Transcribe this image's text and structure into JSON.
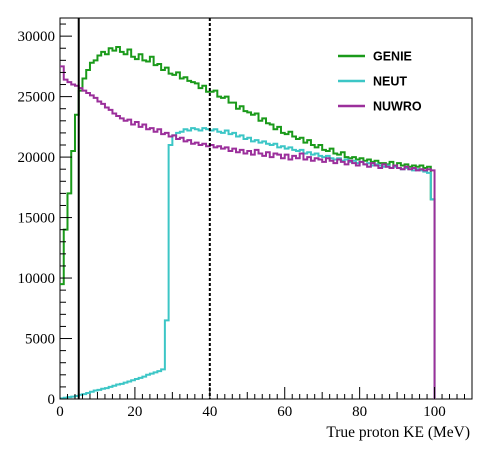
{
  "chart_data": {
    "type": "line",
    "title": "",
    "xlabel": "True proton KE (MeV)",
    "ylabel": "",
    "xlim": [
      0,
      110
    ],
    "ylim": [
      0,
      31500
    ],
    "x_ticks": [
      0,
      20,
      40,
      60,
      80,
      100
    ],
    "y_ticks": [
      0,
      5000,
      10000,
      15000,
      20000,
      25000,
      30000
    ],
    "x_tick_labels": [
      "0",
      "20",
      "40",
      "60",
      "80",
      "100"
    ],
    "y_tick_labels": [
      "0",
      "5000",
      "10000",
      "15000",
      "20000",
      "25000",
      "30000"
    ],
    "grid": false,
    "legend_position": "top-right",
    "bin_width": 1,
    "vertical_lines": [
      {
        "x": 5,
        "style": "solid",
        "color": "#000000"
      },
      {
        "x": 40,
        "style": "dotted",
        "color": "#000000"
      }
    ],
    "series": [
      {
        "name": "GENIE",
        "color": "#1a9a1a",
        "x_start": 0,
        "values": [
          9500,
          14000,
          17000,
          20500,
          23500,
          25500,
          26500,
          27200,
          27800,
          28000,
          28400,
          28700,
          28500,
          29000,
          28800,
          29100,
          28700,
          28500,
          28900,
          28300,
          28100,
          28500,
          28000,
          27900,
          28300,
          27600,
          27700,
          27200,
          27400,
          26900,
          26800,
          27000,
          26500,
          26600,
          26300,
          26200,
          26100,
          25700,
          25900,
          25400,
          25400,
          25500,
          25000,
          24900,
          25000,
          24500,
          24500,
          24000,
          24200,
          23800,
          23700,
          23500,
          23600,
          23000,
          23200,
          22800,
          22700,
          22300,
          22500,
          22000,
          21900,
          22100,
          21700,
          21500,
          21600,
          21200,
          21400,
          21000,
          20800,
          21000,
          20600,
          20500,
          20700,
          20300,
          20200,
          20400,
          20000,
          19900,
          20000,
          19800,
          19900,
          19700,
          19800,
          19600,
          19700,
          19500,
          19500,
          19400,
          19600,
          19300,
          19500,
          19300,
          19400,
          19200,
          19300,
          19200,
          19300,
          19100,
          19200,
          16500
        ]
      },
      {
        "name": "NEUT",
        "color": "#3cc6c6",
        "x_start": 0,
        "values": [
          50,
          100,
          150,
          200,
          250,
          350,
          400,
          500,
          600,
          700,
          750,
          850,
          900,
          1000,
          1100,
          1200,
          1250,
          1350,
          1450,
          1550,
          1650,
          1750,
          1850,
          2000,
          2100,
          2200,
          2300,
          2450,
          6500,
          21000,
          21800,
          22000,
          22100,
          22300,
          22200,
          22400,
          22300,
          22200,
          22400,
          22300,
          22200,
          22300,
          22100,
          22000,
          22200,
          21900,
          22000,
          21700,
          21800,
          21500,
          21600,
          21300,
          21400,
          21200,
          21300,
          21100,
          21000,
          21100,
          20800,
          20900,
          20700,
          20800,
          20600,
          20500,
          20600,
          20300,
          20400,
          20200,
          20300,
          20100,
          20000,
          20100,
          19900,
          19800,
          19900,
          19700,
          19800,
          19600,
          19700,
          19500,
          19600,
          19400,
          19500,
          19300,
          19400,
          19300,
          19200,
          19300,
          19100,
          19200,
          19100,
          19000,
          19100,
          19000,
          18900,
          19000,
          18900,
          18800,
          18700,
          16500
        ]
      },
      {
        "name": "NUWRO",
        "color": "#9b2f9b",
        "x_start": 0,
        "values": [
          27500,
          26400,
          26200,
          26000,
          25900,
          25700,
          25500,
          25300,
          25100,
          24900,
          24600,
          24400,
          24100,
          23900,
          23600,
          23400,
          23200,
          23000,
          23100,
          22700,
          22900,
          22500,
          22700,
          22300,
          22400,
          22100,
          22300,
          21900,
          22000,
          21700,
          21800,
          21500,
          21600,
          21300,
          21400,
          21100,
          21200,
          21000,
          21100,
          20900,
          21000,
          20800,
          20900,
          20700,
          20800,
          20500,
          20700,
          20400,
          20600,
          20300,
          20500,
          20200,
          20600,
          20300,
          20100,
          20400,
          20000,
          20300,
          20200,
          19900,
          20200,
          19800,
          20100,
          19900,
          20300,
          19800,
          20000,
          19700,
          19900,
          19800,
          19600,
          19900,
          19700,
          19500,
          19800,
          19600,
          19400,
          19700,
          19500,
          19300,
          19600,
          19400,
          19200,
          19500,
          19300,
          19100,
          19400,
          19200,
          19100,
          19300,
          19100,
          19000,
          19200,
          19000,
          19100,
          18900,
          19000,
          18900,
          19000,
          18900
        ]
      }
    ]
  }
}
